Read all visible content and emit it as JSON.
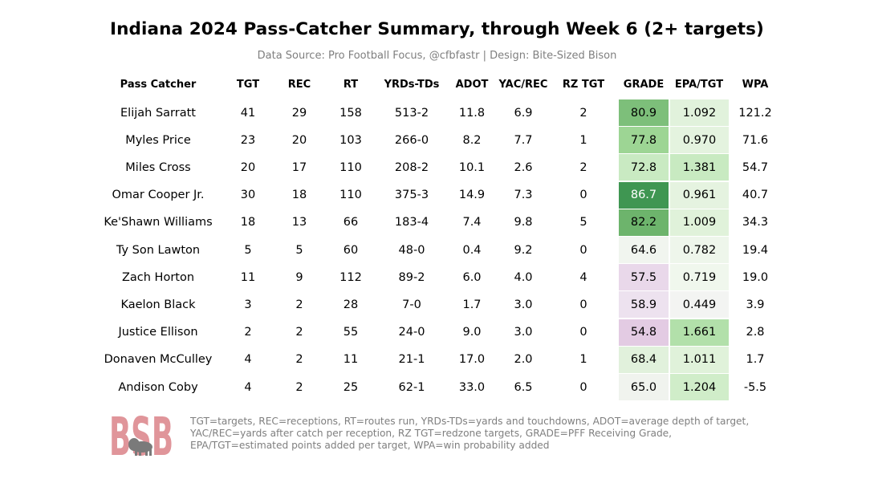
{
  "chart_data": {
    "type": "table",
    "title": "Indiana 2024 Pass-Catcher Summary, through Week 6 (2+ targets)",
    "subtitle": "Data Source: Pro Football Focus, @cfbfastr | Design: Bite-Sized Bison",
    "columns": [
      "Pass Catcher",
      "TGT",
      "REC",
      "RT",
      "YRDs-TDs",
      "ADOT",
      "YAC/REC",
      "RZ TGT",
      "GRADE",
      "EPA/TGT",
      "WPA"
    ],
    "rows": [
      [
        "Elijah Sarratt",
        "41",
        "29",
        "158",
        "513-2",
        "11.8",
        "6.9",
        "2",
        "80.9",
        "1.092",
        "121.2"
      ],
      [
        "Myles Price",
        "23",
        "20",
        "103",
        "266-0",
        "8.2",
        "7.7",
        "1",
        "77.8",
        "0.970",
        "71.6"
      ],
      [
        "Miles Cross",
        "20",
        "17",
        "110",
        "208-2",
        "10.1",
        "2.6",
        "2",
        "72.8",
        "1.381",
        "54.7"
      ],
      [
        "Omar Cooper Jr.",
        "30",
        "18",
        "110",
        "375-3",
        "14.9",
        "7.3",
        "0",
        "86.7",
        "0.961",
        "40.7"
      ],
      [
        "Ke'Shawn Williams",
        "18",
        "13",
        "66",
        "183-4",
        "7.4",
        "9.8",
        "5",
        "82.2",
        "1.009",
        "34.3"
      ],
      [
        "Ty Son Lawton",
        "5",
        "5",
        "60",
        "48-0",
        "0.4",
        "9.2",
        "0",
        "64.6",
        "0.782",
        "19.4"
      ],
      [
        "Zach Horton",
        "11",
        "9",
        "112",
        "89-2",
        "6.0",
        "4.0",
        "4",
        "57.5",
        "0.719",
        "19.0"
      ],
      [
        "Kaelon Black",
        "3",
        "2",
        "28",
        "7-0",
        "1.7",
        "3.0",
        "0",
        "58.9",
        "0.449",
        "3.9"
      ],
      [
        "Justice Ellison",
        "2",
        "2",
        "55",
        "24-0",
        "9.0",
        "3.0",
        "0",
        "54.8",
        "1.661",
        "2.8"
      ],
      [
        "Donaven McCulley",
        "4",
        "2",
        "11",
        "21-1",
        "17.0",
        "2.0",
        "1",
        "68.4",
        "1.011",
        "1.7"
      ],
      [
        "Andison Coby",
        "4",
        "2",
        "25",
        "62-1",
        "33.0",
        "6.5",
        "0",
        "65.0",
        "1.204",
        "-5.5"
      ]
    ],
    "shading": {
      "grade_colors": [
        "#7dbf7a",
        "#9dd594",
        "#c9eac2",
        "#3f9652",
        "#6db46c",
        "#f1f5ef",
        "#e9d8ea",
        "#ede2ef",
        "#e3cbe3",
        "#e1f1dc",
        "#f0f3ee"
      ],
      "epa_colors": [
        "#e1f2dc",
        "#e4f3df",
        "#c8eac1",
        "#e5f3e0",
        "#e0f2da",
        "#eef6eb",
        "#f0f7ed",
        "#f3f4f2",
        "#b2e0aa",
        "#e0f2da",
        "#d0edc9"
      ],
      "grade_text_colors": [
        "#000000",
        "#000000",
        "#000000",
        "#ffffff",
        "#000000",
        "#000000",
        "#000000",
        "#000000",
        "#000000",
        "#000000",
        "#000000"
      ]
    }
  },
  "footnote": {
    "line1": "TGT=targets, REC=receptions, RT=routes run, YRDs-TDs=yards and touchdowns, ADOT=average depth of target,",
    "line2": "YAC/REC=yards after catch per reception, RZ TGT=redzone targets, GRADE=PFF Receiving Grade,",
    "line3": "EPA/TGT=estimated points added per target, WPA=win probability added"
  },
  "logo": {
    "text": "BSB",
    "color": "#e0959a",
    "bison_color": "#7a7a7a"
  }
}
